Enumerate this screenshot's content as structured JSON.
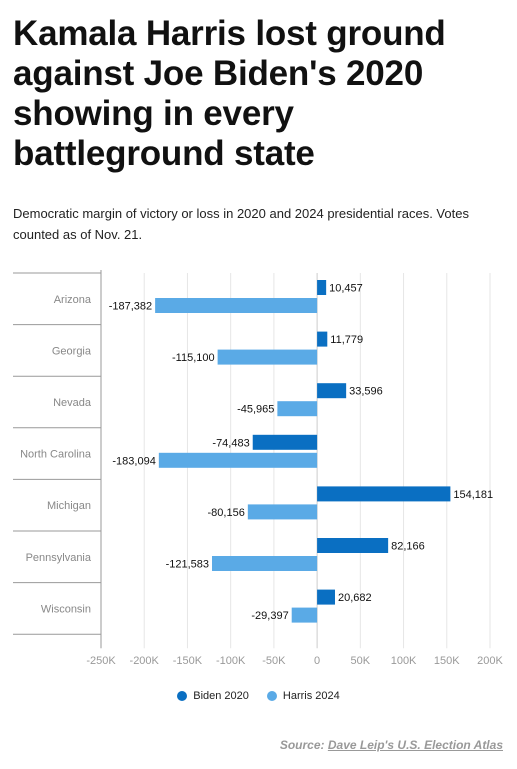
{
  "headline": "Kamala Harris lost ground against Joe Biden's 2020 showing in every battleground state",
  "subtitle": "Democratic margin of victory or loss in 2020 and 2024 presidential races. Votes counted as of Nov. 21.",
  "source": {
    "label": "Source:",
    "link_text": "Dave Leip's U.S. Election Atlas"
  },
  "colors": {
    "biden": "#0a6fc2",
    "harris": "#5aaae6",
    "grid": "#e6e6e6",
    "axis": "#999999"
  },
  "chart_data": {
    "type": "bar",
    "orientation": "horizontal",
    "title": "",
    "xlabel": "",
    "ylabel": "",
    "categories": [
      "Arizona",
      "Georgia",
      "Nevada",
      "North Carolina",
      "Michigan",
      "Pennsylvania",
      "Wisconsin"
    ],
    "series": [
      {
        "name": "Biden 2020",
        "values": [
          10457,
          11779,
          33596,
          -74483,
          154181,
          82166,
          20682
        ],
        "labels": [
          "10,457",
          "11,779",
          "33,596",
          "-74,483",
          "154,181",
          "82,166",
          "20,682"
        ]
      },
      {
        "name": "Harris 2024",
        "values": [
          -187382,
          -115100,
          -45965,
          -183094,
          -80156,
          -121583,
          -29397
        ],
        "labels": [
          "-187,382",
          "-115,100",
          "-45,965",
          "-183,094",
          "-80,156",
          "-121,583",
          "-29,397"
        ]
      }
    ],
    "xlim": [
      -250000,
      200000
    ],
    "xticks": [
      -250000,
      -200000,
      -150000,
      -100000,
      -50000,
      0,
      50000,
      100000,
      150000,
      200000
    ],
    "xtick_labels": [
      "-250K",
      "-200K",
      "-150K",
      "-100K",
      "-50K",
      "0",
      "50K",
      "100K",
      "150K",
      "200K"
    ],
    "grid": true,
    "legend": "bottom"
  }
}
